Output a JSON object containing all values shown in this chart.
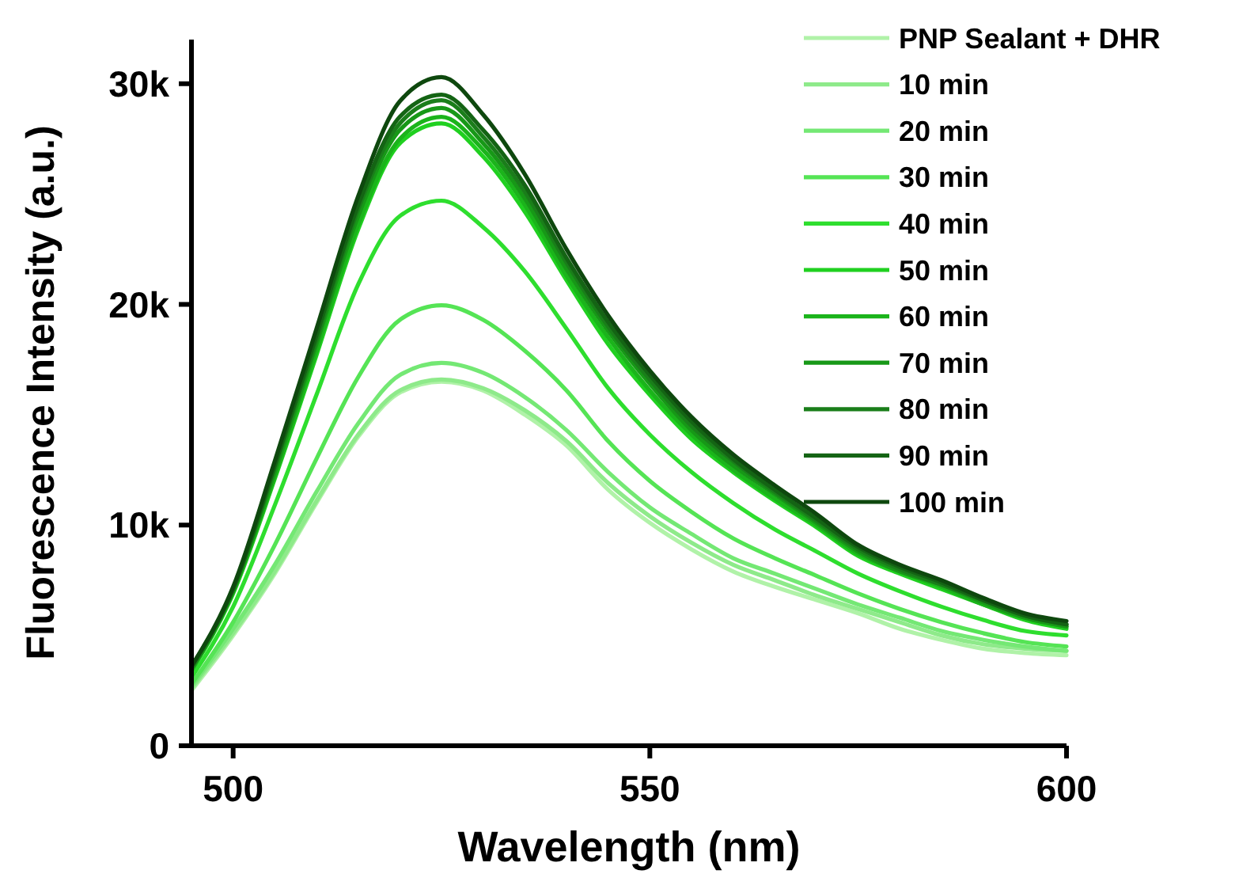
{
  "chart_data": {
    "type": "line",
    "xlabel": "Wavelength (nm)",
    "ylabel": "Fluorescence Intensity (a.u.)",
    "x": [
      495,
      500,
      505,
      510,
      515,
      520,
      525,
      530,
      535,
      540,
      545,
      550,
      555,
      560,
      565,
      570,
      575,
      580,
      585,
      590,
      595,
      600
    ],
    "xlim": [
      495,
      600
    ],
    "xticks": [
      500,
      550,
      600
    ],
    "ylim": [
      0,
      32000
    ],
    "yticks": [
      0,
      {
        "value": 10000,
        "label": "10k"
      },
      {
        "value": 20000,
        "label": "20k"
      },
      {
        "value": 30000,
        "label": "30k"
      }
    ],
    "legend": "top right",
    "grid": false,
    "marker": "none",
    "line_style": "solid",
    "series": [
      {
        "name": "PNP Sealant + DHR",
        "color": "#b0f2a8",
        "values": [
          2500,
          5000,
          7800,
          11000,
          14000,
          16000,
          16500,
          16100,
          15000,
          13600,
          11600,
          10100,
          8900,
          7900,
          7200,
          6600,
          6000,
          5300,
          4800,
          4400,
          4200,
          4100
        ]
      },
      {
        "name": "10 min",
        "color": "#8eea8a",
        "values": [
          2600,
          5100,
          7900,
          11100,
          14100,
          16100,
          16600,
          16200,
          15200,
          13800,
          11900,
          10400,
          9200,
          8200,
          7500,
          6800,
          6200,
          5600,
          5000,
          4600,
          4400,
          4300
        ]
      },
      {
        "name": "20 min",
        "color": "#74e874",
        "values": [
          2700,
          5300,
          8200,
          11500,
          14600,
          16800,
          17350,
          16900,
          15800,
          14300,
          12400,
          10800,
          9600,
          8500,
          7800,
          7100,
          6400,
          5800,
          5200,
          4800,
          4500,
          4300
        ]
      },
      {
        "name": "30 min",
        "color": "#55e455",
        "values": [
          2800,
          5600,
          9100,
          13000,
          16700,
          19300,
          19960,
          19300,
          17900,
          16100,
          13800,
          12000,
          10600,
          9400,
          8500,
          7700,
          6900,
          6200,
          5600,
          5100,
          4700,
          4500
        ]
      },
      {
        "name": "40 min",
        "color": "#2ede2e",
        "values": [
          3100,
          6300,
          10900,
          15900,
          20900,
          24000,
          24700,
          23500,
          21500,
          18900,
          16200,
          14100,
          12400,
          11000,
          9800,
          8800,
          7800,
          7000,
          6300,
          5700,
          5200,
          5000
        ]
      },
      {
        "name": "50 min",
        "color": "#20d020",
        "values": [
          3400,
          6900,
          12100,
          17700,
          23400,
          27300,
          28200,
          26700,
          24200,
          21100,
          18200,
          15900,
          13900,
          12400,
          11100,
          9900,
          8600,
          7800,
          7100,
          6400,
          5700,
          5300
        ]
      },
      {
        "name": "60 min",
        "color": "#1bb41b",
        "values": [
          3400,
          7000,
          12200,
          17900,
          23600,
          27500,
          28500,
          27000,
          24500,
          21300,
          18500,
          16100,
          14100,
          12500,
          11200,
          10000,
          8700,
          7900,
          7200,
          6400,
          5800,
          5400
        ]
      },
      {
        "name": "70 min",
        "color": "#179817",
        "values": [
          3500,
          7000,
          12400,
          18200,
          24000,
          27900,
          28900,
          27300,
          24800,
          21600,
          18800,
          16400,
          14300,
          12700,
          11400,
          10100,
          8800,
          7900,
          7300,
          6500,
          5800,
          5400
        ]
      },
      {
        "name": "80 min",
        "color": "#1a7e1a",
        "values": [
          3500,
          7100,
          12600,
          18400,
          24300,
          28200,
          29250,
          27600,
          25100,
          21900,
          19000,
          16600,
          14500,
          12900,
          11500,
          10200,
          8900,
          8000,
          7300,
          6600,
          5900,
          5500
        ]
      },
      {
        "name": "90 min",
        "color": "#146414",
        "values": [
          3600,
          7100,
          12700,
          18600,
          24500,
          28500,
          29500,
          27900,
          25400,
          22100,
          19200,
          16800,
          14700,
          13000,
          11600,
          10300,
          9000,
          8100,
          7400,
          6600,
          5900,
          5500
        ]
      },
      {
        "name": "100 min",
        "color": "#0e480e",
        "values": [
          3600,
          7200,
          12900,
          18900,
          24900,
          29200,
          30300,
          28600,
          25900,
          22500,
          19500,
          17000,
          14900,
          13200,
          11800,
          10500,
          9100,
          8200,
          7500,
          6700,
          6000,
          5650
        ]
      }
    ]
  }
}
